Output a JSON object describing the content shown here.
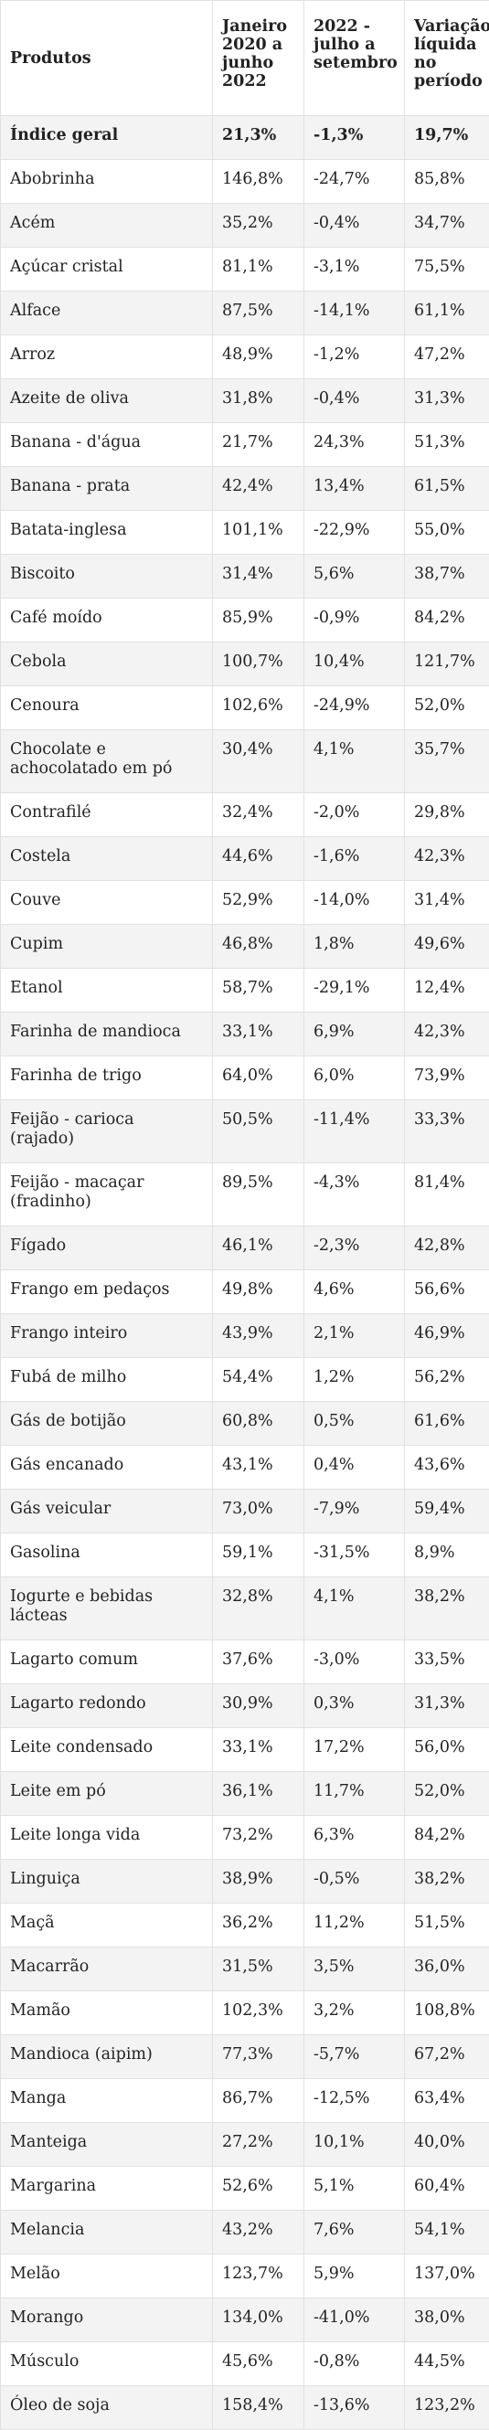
{
  "headers": [
    "Produtos",
    "Janeiro 2020 a junho 2022",
    "2022 - julho a setembro",
    "Variação líquida no período"
  ],
  "rows": [
    [
      "Índice geral",
      "21,3%",
      "-1,3%",
      "19,7%"
    ],
    [
      "Abobrinha",
      "146,8%",
      "-24,7%",
      "85,8%"
    ],
    [
      "Acém",
      "35,2%",
      "-0,4%",
      "34,7%"
    ],
    [
      "Açúcar cristal",
      "81,1%",
      "-3,1%",
      "75,5%"
    ],
    [
      "Alface",
      "87,5%",
      "-14,1%",
      "61,1%"
    ],
    [
      "Arroz",
      "48,9%",
      "-1,2%",
      "47,2%"
    ],
    [
      "Azeite de oliva",
      "31,8%",
      "-0,4%",
      "31,3%"
    ],
    [
      "Banana - d'água",
      "21,7%",
      "24,3%",
      "51,3%"
    ],
    [
      "Banana - prata",
      "42,4%",
      "13,4%",
      "61,5%"
    ],
    [
      "Batata-inglesa",
      "101,1%",
      "-22,9%",
      "55,0%"
    ],
    [
      "Biscoito",
      "31,4%",
      "5,6%",
      "38,7%"
    ],
    [
      "Café moído",
      "85,9%",
      "-0,9%",
      "84,2%"
    ],
    [
      "Cebola",
      "100,7%",
      "10,4%",
      "121,7%"
    ],
    [
      "Cenoura",
      "102,6%",
      "-24,9%",
      "52,0%"
    ],
    [
      "Chocolate e achocolatado em pó",
      "30,4%",
      "4,1%",
      "35,7%"
    ],
    [
      "Contrafilé",
      "32,4%",
      "-2,0%",
      "29,8%"
    ],
    [
      "Costela",
      "44,6%",
      "-1,6%",
      "42,3%"
    ],
    [
      "Couve",
      "52,9%",
      "-14,0%",
      "31,4%"
    ],
    [
      "Cupim",
      "46,8%",
      "1,8%",
      "49,6%"
    ],
    [
      "Etanol",
      "58,7%",
      "-29,1%",
      "12,4%"
    ],
    [
      "Farinha de mandioca",
      "33,1%",
      "6,9%",
      "42,3%"
    ],
    [
      "Farinha de trigo",
      "64,0%",
      "6,0%",
      "73,9%"
    ],
    [
      "Feijão - carioca (rajado)",
      "50,5%",
      "-11,4%",
      "33,3%"
    ],
    [
      "Feijão - macaçar (fradinho)",
      "89,5%",
      "-4,3%",
      "81,4%"
    ],
    [
      "Fígado",
      "46,1%",
      "-2,3%",
      "42,8%"
    ],
    [
      "Frango em pedaços",
      "49,8%",
      "4,6%",
      "56,6%"
    ],
    [
      "Frango inteiro",
      "43,9%",
      "2,1%",
      "46,9%"
    ],
    [
      "Fubá de milho",
      "54,4%",
      "1,2%",
      "56,2%"
    ],
    [
      "Gás de botijão",
      "60,8%",
      "0,5%",
      "61,6%"
    ],
    [
      "Gás encanado",
      "43,1%",
      "0,4%",
      "43,6%"
    ],
    [
      "Gás veicular",
      "73,0%",
      "-7,9%",
      "59,4%"
    ],
    [
      "Gasolina",
      "59,1%",
      "-31,5%",
      "8,9%"
    ],
    [
      "Iogurte e bebidas lácteas",
      "32,8%",
      "4,1%",
      "38,2%"
    ],
    [
      "Lagarto comum",
      "37,6%",
      "-3,0%",
      "33,5%"
    ],
    [
      "Lagarto redondo",
      "30,9%",
      "0,3%",
      "31,3%"
    ],
    [
      "Leite condensado",
      "33,1%",
      "17,2%",
      "56,0%"
    ],
    [
      "Leite em pó",
      "36,1%",
      "11,7%",
      "52,0%"
    ],
    [
      "Leite longa vida",
      "73,2%",
      "6,3%",
      "84,2%"
    ],
    [
      "Linguiça",
      "38,9%",
      "-0,5%",
      "38,2%"
    ],
    [
      "Maçã",
      "36,2%",
      "11,2%",
      "51,5%"
    ],
    [
      "Macarrão",
      "31,5%",
      "3,5%",
      "36,0%"
    ],
    [
      "Mamão",
      "102,3%",
      "3,2%",
      "108,8%"
    ],
    [
      "Mandioca (aipim)",
      "77,3%",
      "-5,7%",
      "67,2%"
    ],
    [
      "Manga",
      "86,7%",
      "-12,5%",
      "63,4%"
    ],
    [
      "Manteiga",
      "27,2%",
      "10,1%",
      "40,0%"
    ],
    [
      "Margarina",
      "52,6%",
      "5,1%",
      "60,4%"
    ],
    [
      "Melancia",
      "43,2%",
      "7,6%",
      "54,1%"
    ],
    [
      "Melão",
      "123,7%",
      "5,9%",
      "137,0%"
    ],
    [
      "Morango",
      "134,0%",
      "-41,0%",
      "38,0%"
    ],
    [
      "Músculo",
      "45,6%",
      "-0,8%",
      "44,5%"
    ],
    [
      "Óleo de soja",
      "158,4%",
      "-13,6%",
      "123,2%"
    ]
  ]
}
